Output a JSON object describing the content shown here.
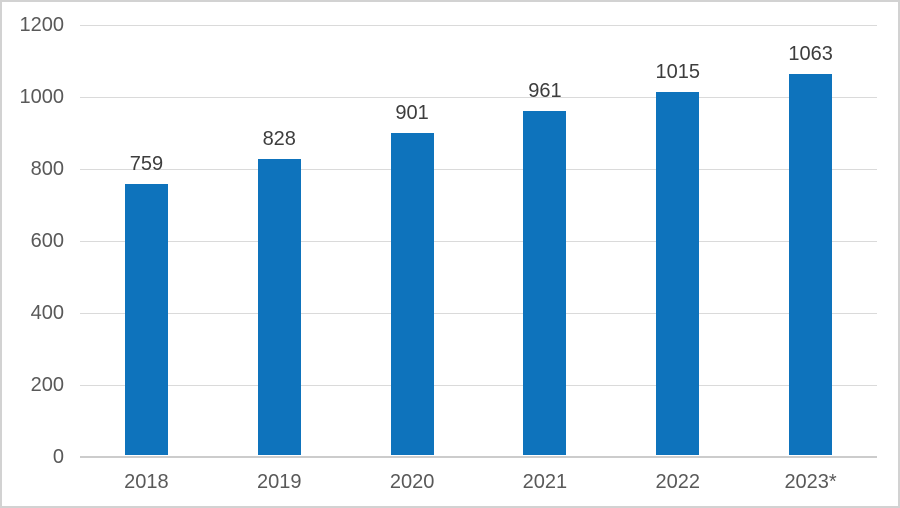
{
  "chart_data": {
    "type": "bar",
    "categories": [
      "2018",
      "2019",
      "2020",
      "2021",
      "2022",
      "2023*"
    ],
    "values": [
      759,
      828,
      901,
      961,
      1015,
      1063
    ],
    "title": "",
    "xlabel": "",
    "ylabel": "",
    "ylim": [
      0,
      1200
    ],
    "yticks": [
      0,
      200,
      400,
      600,
      800,
      1000,
      1200
    ],
    "grid": true,
    "legend": false,
    "data_labels": [
      "759",
      "828",
      "901",
      "961",
      "1015",
      "1063"
    ],
    "colors": {
      "bar": "#0e73bc",
      "gridline": "#dadada",
      "axis_baseline": "#cccccc",
      "ytick_label": "#595959",
      "xtick_label": "#595959",
      "data_label": "#3d3d3d",
      "background": "#ffffff",
      "frame_border": "#d2d2d2"
    }
  }
}
